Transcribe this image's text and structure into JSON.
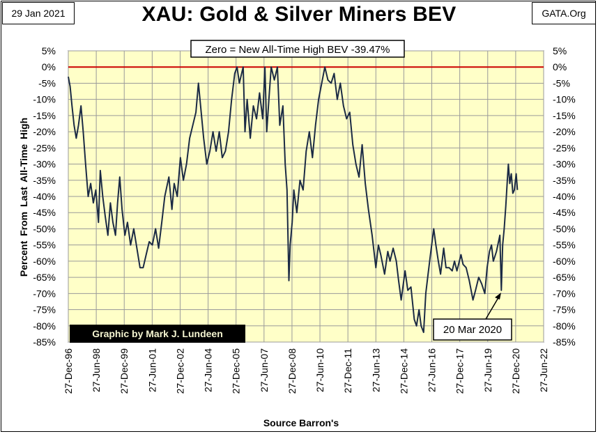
{
  "header": {
    "date": "29 Jan 2021",
    "source_site": "GATA.Org",
    "title": "XAU: Gold & Silver Miners BEV"
  },
  "chart_data": {
    "type": "line",
    "title": "XAU: Gold & Silver Miners BEV",
    "subtitle": "Zero = New All-Time High BEV -39.47%",
    "ylabel": "Percent From Last All-Time High",
    "xlabel": "Source Barron's",
    "ylim": [
      -85,
      5
    ],
    "y_ticks": [
      5,
      0,
      -5,
      -10,
      -15,
      -20,
      -25,
      -30,
      -35,
      -40,
      -45,
      -50,
      -55,
      -60,
      -65,
      -70,
      -75,
      -80,
      -85
    ],
    "y_tick_labels": [
      "5%",
      "0%",
      "-5%",
      "-10%",
      "-15%",
      "-20%",
      "-25%",
      "-30%",
      "-35%",
      "-40%",
      "-45%",
      "-50%",
      "-55%",
      "-60%",
      "-65%",
      "-70%",
      "-75%",
      "-80%",
      "-85%"
    ],
    "x_tick_labels": [
      "27-Dec-96",
      "27-Jun-98",
      "27-Dec-99",
      "27-Jun-01",
      "27-Dec-02",
      "27-Jun-04",
      "27-Dec-05",
      "27-Jun-07",
      "27-Dec-08",
      "27-Jun-10",
      "27-Dec-11",
      "27-Jun-13",
      "27-Dec-14",
      "27-Jun-16",
      "27-Dec-17",
      "27-Jun-19",
      "27-Dec-20",
      "27-Jun-22"
    ],
    "x_range": [
      "1996-12-27",
      "2022-06-27"
    ],
    "reference_line": {
      "y": 0,
      "color": "#cc0000"
    },
    "grid": true,
    "plot_background": "#ffffc8",
    "series": [
      {
        "color": "#1b2a44",
        "points": [
          [
            "1996-12-27",
            -3
          ],
          [
            "1997-02-01",
            -6
          ],
          [
            "1997-03-10",
            -12
          ],
          [
            "1997-04-20",
            -18
          ],
          [
            "1997-06-01",
            -22
          ],
          [
            "1997-07-15",
            -18
          ],
          [
            "1997-09-01",
            -12
          ],
          [
            "1997-10-15",
            -20
          ],
          [
            "1997-12-01",
            -30
          ],
          [
            "1998-01-20",
            -40
          ],
          [
            "1998-03-10",
            -36
          ],
          [
            "1998-05-01",
            -42
          ],
          [
            "1998-06-20",
            -38
          ],
          [
            "1998-08-10",
            -48
          ],
          [
            "1998-09-15",
            -32
          ],
          [
            "1998-11-01",
            -40
          ],
          [
            "1998-12-20",
            -46
          ],
          [
            "1999-02-10",
            -52
          ],
          [
            "1999-04-01",
            -42
          ],
          [
            "1999-05-20",
            -48
          ],
          [
            "1999-07-10",
            -52
          ],
          [
            "1999-08-20",
            -42
          ],
          [
            "1999-10-01",
            -34
          ],
          [
            "1999-11-15",
            -44
          ],
          [
            "2000-01-10",
            -52
          ],
          [
            "2000-03-01",
            -48
          ],
          [
            "2000-05-01",
            -55
          ],
          [
            "2000-07-01",
            -50
          ],
          [
            "2000-09-01",
            -56
          ],
          [
            "2000-11-01",
            -62
          ],
          [
            "2001-01-01",
            -62
          ],
          [
            "2001-03-01",
            -58
          ],
          [
            "2001-05-01",
            -54
          ],
          [
            "2001-07-01",
            -55
          ],
          [
            "2001-09-01",
            -50
          ],
          [
            "2001-11-01",
            -56
          ],
          [
            "2002-01-01",
            -48
          ],
          [
            "2002-03-01",
            -40
          ],
          [
            "2002-05-20",
            -34
          ],
          [
            "2002-07-20",
            -44
          ],
          [
            "2002-09-01",
            -36
          ],
          [
            "2002-11-01",
            -40
          ],
          [
            "2003-01-01",
            -28
          ],
          [
            "2003-03-01",
            -35
          ],
          [
            "2003-05-01",
            -30
          ],
          [
            "2003-07-01",
            -22
          ],
          [
            "2003-09-01",
            -18
          ],
          [
            "2003-11-01",
            -14
          ],
          [
            "2003-12-20",
            -5
          ],
          [
            "2004-02-01",
            -12
          ],
          [
            "2004-04-01",
            -22
          ],
          [
            "2004-06-01",
            -30
          ],
          [
            "2004-08-01",
            -26
          ],
          [
            "2004-10-01",
            -20
          ],
          [
            "2004-12-01",
            -26
          ],
          [
            "2005-02-01",
            -20
          ],
          [
            "2005-04-01",
            -28
          ],
          [
            "2005-06-01",
            -26
          ],
          [
            "2005-08-01",
            -20
          ],
          [
            "2005-10-01",
            -10
          ],
          [
            "2005-12-01",
            -2
          ],
          [
            "2006-01-15",
            0
          ],
          [
            "2006-03-01",
            -5
          ],
          [
            "2006-05-15",
            0
          ],
          [
            "2006-06-20",
            -20
          ],
          [
            "2006-08-01",
            -10
          ],
          [
            "2006-10-01",
            -22
          ],
          [
            "2006-12-01",
            -12
          ],
          [
            "2007-02-01",
            -16
          ],
          [
            "2007-04-01",
            -8
          ],
          [
            "2007-06-01",
            -16
          ],
          [
            "2007-07-15",
            0
          ],
          [
            "2007-08-20",
            -20
          ],
          [
            "2007-10-01",
            -10
          ],
          [
            "2007-11-15",
            0
          ],
          [
            "2008-01-15",
            -4
          ],
          [
            "2008-03-15",
            0
          ],
          [
            "2008-05-01",
            -18
          ],
          [
            "2008-07-01",
            -12
          ],
          [
            "2008-08-15",
            -30
          ],
          [
            "2008-09-20",
            -38
          ],
          [
            "2008-10-27",
            -66
          ],
          [
            "2008-11-20",
            -55
          ],
          [
            "2008-12-30",
            -48
          ],
          [
            "2009-02-01",
            -38
          ],
          [
            "2009-04-01",
            -45
          ],
          [
            "2009-06-01",
            -35
          ],
          [
            "2009-08-01",
            -38
          ],
          [
            "2009-10-01",
            -26
          ],
          [
            "2009-12-01",
            -20
          ],
          [
            "2010-02-01",
            -28
          ],
          [
            "2010-04-01",
            -18
          ],
          [
            "2010-06-01",
            -10
          ],
          [
            "2010-08-01",
            -5
          ],
          [
            "2010-10-01",
            0
          ],
          [
            "2010-12-01",
            -4
          ],
          [
            "2011-02-01",
            -5
          ],
          [
            "2011-04-01",
            -2
          ],
          [
            "2011-06-01",
            -10
          ],
          [
            "2011-08-01",
            -5
          ],
          [
            "2011-10-01",
            -12
          ],
          [
            "2011-12-01",
            -16
          ],
          [
            "2012-02-01",
            -14
          ],
          [
            "2012-04-01",
            -24
          ],
          [
            "2012-06-01",
            -30
          ],
          [
            "2012-08-01",
            -34
          ],
          [
            "2012-10-01",
            -24
          ],
          [
            "2012-12-01",
            -36
          ],
          [
            "2013-02-01",
            -44
          ],
          [
            "2013-04-15",
            -52
          ],
          [
            "2013-06-27",
            -62
          ],
          [
            "2013-08-15",
            -55
          ],
          [
            "2013-10-01",
            -58
          ],
          [
            "2013-12-15",
            -64
          ],
          [
            "2014-02-15",
            -57
          ],
          [
            "2014-04-01",
            -60
          ],
          [
            "2014-06-01",
            -56
          ],
          [
            "2014-08-01",
            -60
          ],
          [
            "2014-09-15",
            -66
          ],
          [
            "2014-11-05",
            -72
          ],
          [
            "2015-01-20",
            -63
          ],
          [
            "2015-03-15",
            -69
          ],
          [
            "2015-05-15",
            -68
          ],
          [
            "2015-07-20",
            -78
          ],
          [
            "2015-09-01",
            -80
          ],
          [
            "2015-10-20",
            -75
          ],
          [
            "2015-12-01",
            -80
          ],
          [
            "2016-01-19",
            -82
          ],
          [
            "2016-03-01",
            -70
          ],
          [
            "2016-04-15",
            -64
          ],
          [
            "2016-06-01",
            -58
          ],
          [
            "2016-08-03",
            -50
          ],
          [
            "2016-09-15",
            -55
          ],
          [
            "2016-11-01",
            -60
          ],
          [
            "2016-12-15",
            -64
          ],
          [
            "2017-02-15",
            -56
          ],
          [
            "2017-04-01",
            -62
          ],
          [
            "2017-06-01",
            -62
          ],
          [
            "2017-08-01",
            -63
          ],
          [
            "2017-09-15",
            -60
          ],
          [
            "2017-11-01",
            -63
          ],
          [
            "2018-01-20",
            -58
          ],
          [
            "2018-03-01",
            -61
          ],
          [
            "2018-05-01",
            -62
          ],
          [
            "2018-07-01",
            -66
          ],
          [
            "2018-09-11",
            -72
          ],
          [
            "2018-11-01",
            -69
          ],
          [
            "2019-01-01",
            -65
          ],
          [
            "2019-03-01",
            -67
          ],
          [
            "2019-05-01",
            -70
          ],
          [
            "2019-06-15",
            -62
          ],
          [
            "2019-08-01",
            -57
          ],
          [
            "2019-09-10",
            -55
          ],
          [
            "2019-10-15",
            -60
          ],
          [
            "2019-12-15",
            -57
          ],
          [
            "2020-02-20",
            -52
          ],
          [
            "2020-03-20",
            -69
          ],
          [
            "2020-04-15",
            -55
          ],
          [
            "2020-05-15",
            -50
          ],
          [
            "2020-06-15",
            -43
          ],
          [
            "2020-07-15",
            -35
          ],
          [
            "2020-08-05",
            -30
          ],
          [
            "2020-09-01",
            -36
          ],
          [
            "2020-10-01",
            -33
          ],
          [
            "2020-11-01",
            -39
          ],
          [
            "2020-12-01",
            -38
          ],
          [
            "2021-01-05",
            -33
          ],
          [
            "2021-01-29",
            -38
          ]
        ]
      }
    ],
    "annotations": [
      {
        "text": "20 Mar 2020",
        "x": "2020-03-20",
        "y": -69
      }
    ],
    "credit": "Graphic by Mark J. Lundeen"
  }
}
